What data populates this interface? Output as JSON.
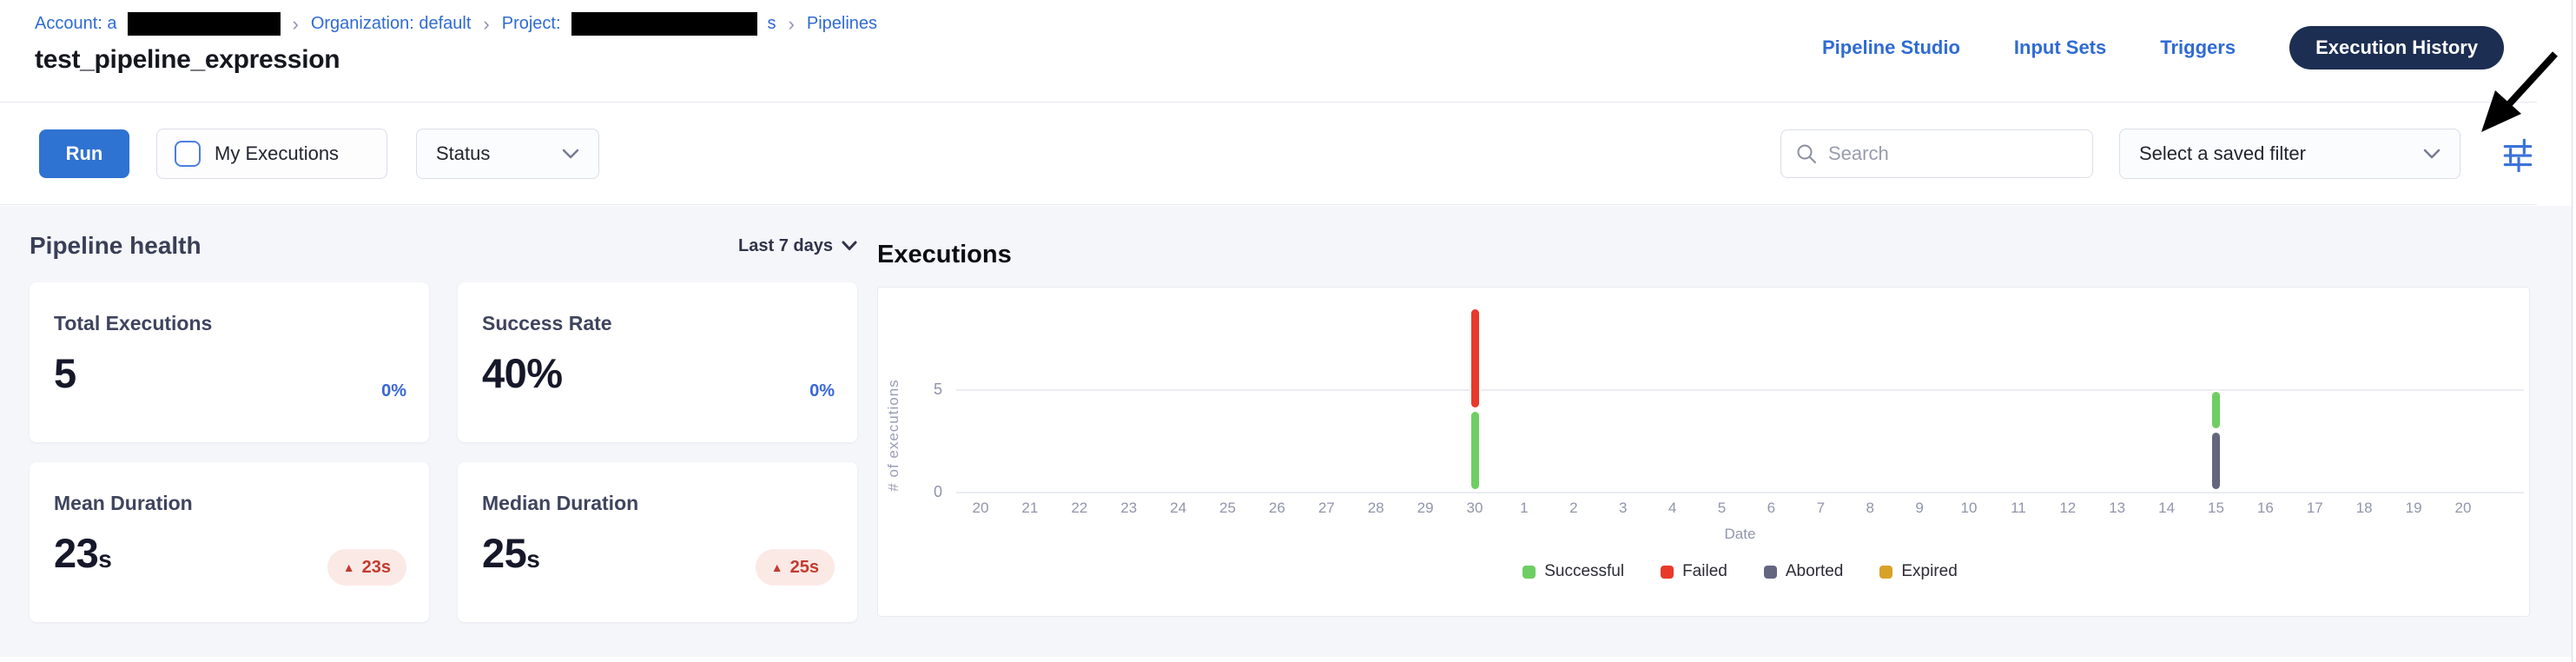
{
  "breadcrumb": {
    "account_label": "Account: a",
    "separator": "›",
    "organization": "Organization: default",
    "project_label": "Project:",
    "project_suffix": "s",
    "pipelines": "Pipelines"
  },
  "page_title": "test_pipeline_expression",
  "nav": {
    "tabs": [
      {
        "label": "Pipeline Studio",
        "active": false
      },
      {
        "label": "Input Sets",
        "active": false
      },
      {
        "label": "Triggers",
        "active": false
      },
      {
        "label": "Execution History",
        "active": true
      }
    ]
  },
  "toolbar": {
    "run_label": "Run",
    "my_executions_label": "My Executions",
    "my_executions_checked": false,
    "status_label": "Status",
    "search_placeholder": "Search",
    "search_value": "",
    "saved_filter_placeholder": "Select a saved filter"
  },
  "pipeline_health": {
    "title": "Pipeline health",
    "range_label": "Last 7 days",
    "cards": [
      {
        "label": "Total Executions",
        "value": "5",
        "unit": "",
        "delta": "0%",
        "delta_type": "neutral-blue"
      },
      {
        "label": "Success Rate",
        "value": "40%",
        "unit": "",
        "delta": "0%",
        "delta_type": "neutral-blue"
      },
      {
        "label": "Mean Duration",
        "value": "23",
        "unit": "s",
        "delta": "23s",
        "delta_type": "up-red"
      },
      {
        "label": "Median Duration",
        "value": "25",
        "unit": "s",
        "delta": "25s",
        "delta_type": "up-red"
      }
    ]
  },
  "executions_section": {
    "title": "Executions"
  },
  "chart_data": {
    "type": "bar",
    "stacked": true,
    "title": "Executions",
    "xlabel": "Date",
    "ylabel": "# of executions",
    "yticks": [
      5,
      0
    ],
    "ylim": [
      0,
      9.2
    ],
    "grid": true,
    "legend_position": "bottom",
    "categories": [
      "20",
      "21",
      "22",
      "23",
      "24",
      "25",
      "26",
      "27",
      "28",
      "29",
      "30",
      "1",
      "2",
      "3",
      "4",
      "5",
      "6",
      "7",
      "8",
      "9",
      "10",
      "11",
      "12",
      "13",
      "14",
      "15",
      "16",
      "17",
      "18",
      "19",
      "20"
    ],
    "stack_order": [
      "Aborted",
      "Successful",
      "Failed",
      "Expired"
    ],
    "series": [
      {
        "name": "Successful",
        "color": "#6fce63",
        "values": [
          0,
          0,
          0,
          0,
          0,
          0,
          0,
          0,
          0,
          0,
          4,
          0,
          0,
          0,
          0,
          0,
          0,
          0,
          0,
          0,
          0,
          0,
          0,
          0,
          0,
          2,
          0,
          0,
          0,
          0,
          0
        ]
      },
      {
        "name": "Failed",
        "color": "#e8392b",
        "values": [
          0,
          0,
          0,
          0,
          0,
          0,
          0,
          0,
          0,
          0,
          5,
          0,
          0,
          0,
          0,
          0,
          0,
          0,
          0,
          0,
          0,
          0,
          0,
          0,
          0,
          0,
          0,
          0,
          0,
          0,
          0
        ]
      },
      {
        "name": "Aborted",
        "color": "#64667f",
        "values": [
          0,
          0,
          0,
          0,
          0,
          0,
          0,
          0,
          0,
          0,
          0,
          0,
          0,
          0,
          0,
          0,
          0,
          0,
          0,
          0,
          0,
          0,
          0,
          0,
          0,
          3,
          0,
          0,
          0,
          0,
          0
        ]
      },
      {
        "name": "Expired",
        "color": "#d9a227",
        "values": [
          0,
          0,
          0,
          0,
          0,
          0,
          0,
          0,
          0,
          0,
          0,
          0,
          0,
          0,
          0,
          0,
          0,
          0,
          0,
          0,
          0,
          0,
          0,
          0,
          0,
          0,
          0,
          0,
          0,
          0,
          0
        ]
      }
    ]
  },
  "colors": {
    "primary_blue": "#2e72d2",
    "link_blue": "#2f6bd3",
    "nav_pill_navy": "#1c2e52",
    "page_bg": "#f5f6fa",
    "delta_blue": "#3a66d9",
    "badge_bg": "#fbe9e6",
    "badge_red": "#c23b2e",
    "successful_green": "#6fce63",
    "failed_red": "#e8392b",
    "aborted_slate": "#64667f",
    "expired_gold": "#d9a227"
  },
  "icons": {
    "search": "magnifier",
    "chevron_down": "chevron-down",
    "sliders": "filter-sliders",
    "trend_up": "▲",
    "arrow_annotation": "hand-drawn-black-arrow"
  }
}
